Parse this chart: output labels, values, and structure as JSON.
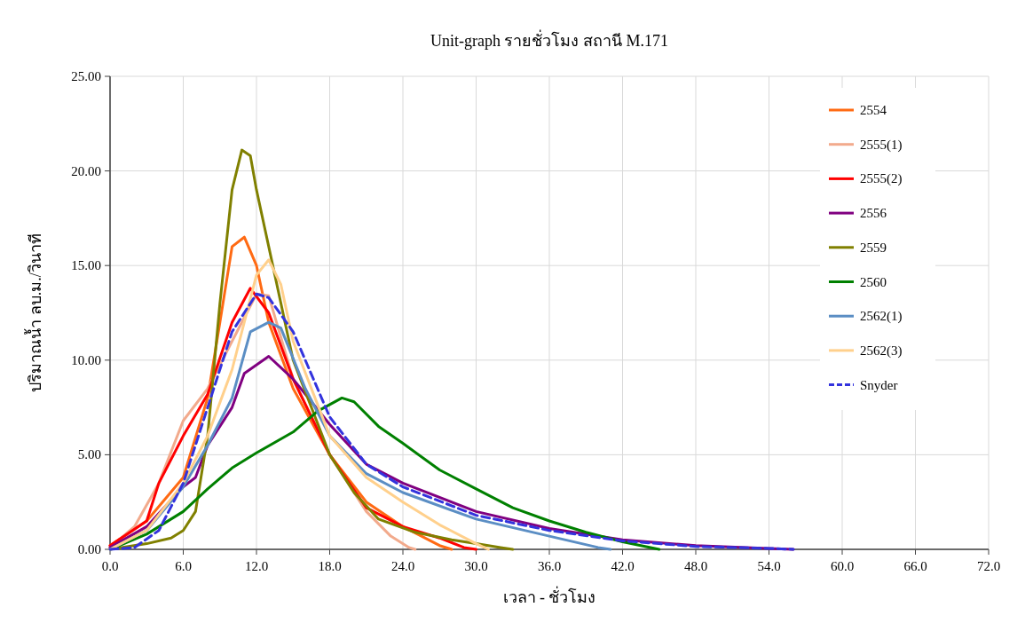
{
  "chart_data": {
    "type": "line",
    "title": "Unit-graph รายชั่วโมง สถานี M.171",
    "xlabel": "เวลา - ชั่วโมง",
    "ylabel": "ปริมาณน้ำ ลบ.ม./วินาที",
    "xlim": [
      0,
      72
    ],
    "xticks": [
      {
        "value": 0,
        "label": "0.0"
      },
      {
        "value": 6,
        "label": "6.0"
      },
      {
        "value": 12,
        "label": "12.0"
      },
      {
        "value": 18,
        "label": "18.0"
      },
      {
        "value": 24,
        "label": "24.0"
      },
      {
        "value": 30,
        "label": "30.0"
      },
      {
        "value": 36,
        "label": "36.0"
      },
      {
        "value": 42,
        "label": "42.0"
      },
      {
        "value": 48,
        "label": "48.0"
      },
      {
        "value": 54,
        "label": "54.0"
      },
      {
        "value": 60,
        "label": "60.0"
      },
      {
        "value": 66,
        "label": "66.0"
      },
      {
        "value": 72,
        "label": "72.0"
      }
    ],
    "ylim": [
      0,
      25
    ],
    "yticks": [
      {
        "value": 0,
        "label": "0.00"
      },
      {
        "value": 5,
        "label": "5.00"
      },
      {
        "value": 10,
        "label": "10.00"
      },
      {
        "value": 15,
        "label": "15.00"
      },
      {
        "value": 20,
        "label": "20.00"
      },
      {
        "value": 25,
        "label": "25.00"
      }
    ],
    "grid": true,
    "legend": "right",
    "marker": "none",
    "series": [
      {
        "name": "2554",
        "color": "#ff6a13",
        "x": [
          0,
          3,
          6,
          8,
          9,
          10,
          11,
          12,
          13,
          15,
          18,
          21,
          24,
          27,
          28
        ],
        "values": [
          0.2,
          1.5,
          3.8,
          8,
          12,
          16,
          16.5,
          15,
          12,
          8.5,
          5,
          2.5,
          1.2,
          0.2,
          0
        ]
      },
      {
        "name": "2555(1)",
        "color": "#f2aa8c",
        "x": [
          0,
          2,
          4,
          6,
          8,
          10,
          12,
          13,
          15,
          18,
          21,
          23,
          24.5,
          25
        ],
        "values": [
          0.1,
          1.2,
          3.5,
          6.8,
          8.5,
          11,
          13.5,
          13.4,
          9,
          5,
          2,
          0.7,
          0.1,
          0
        ]
      },
      {
        "name": "2555(2)",
        "color": "#ff0000",
        "x": [
          0,
          3,
          4,
          6,
          8,
          10,
          11.5,
          13,
          15,
          18,
          21,
          24,
          27,
          29,
          30
        ],
        "values": [
          0.2,
          1.5,
          3.5,
          6,
          8.2,
          12,
          13.8,
          12.5,
          9,
          5,
          2.2,
          1.2,
          0.6,
          0.1,
          0
        ]
      },
      {
        "name": "2556",
        "color": "#800080",
        "x": [
          0,
          3,
          6,
          7,
          8,
          10,
          11,
          13,
          15,
          18,
          21,
          24,
          30,
          36,
          42,
          48,
          54,
          56
        ],
        "values": [
          0.1,
          1.2,
          3.3,
          3.8,
          5.5,
          7.5,
          9.3,
          10.2,
          9,
          6.6,
          4.5,
          3.5,
          2,
          1.1,
          0.5,
          0.2,
          0.05,
          0
        ]
      },
      {
        "name": "2559",
        "color": "#808000",
        "x": [
          0,
          3,
          5,
          6,
          7,
          8,
          9,
          10,
          10.8,
          11.5,
          12,
          13,
          15,
          18,
          20,
          22,
          25,
          28,
          30,
          32,
          33
        ],
        "values": [
          0,
          0.3,
          0.6,
          1,
          2,
          6,
          13,
          19,
          21.1,
          20.8,
          19,
          16,
          10,
          5,
          3,
          1.6,
          0.9,
          0.5,
          0.3,
          0.1,
          0
        ]
      },
      {
        "name": "2560",
        "color": "#008000",
        "x": [
          0,
          3,
          6,
          8,
          10,
          12,
          15,
          17,
          19,
          20,
          22,
          24,
          27,
          30,
          33,
          36,
          39,
          42,
          45
        ],
        "values": [
          0,
          0.8,
          2,
          3.2,
          4.3,
          5.1,
          6.2,
          7.3,
          8,
          7.8,
          6.5,
          5.6,
          4.2,
          3.2,
          2.2,
          1.5,
          0.9,
          0.4,
          0
        ]
      },
      {
        "name": "2562(1)",
        "color": "#5b8ec4",
        "x": [
          0,
          3,
          6,
          8,
          10,
          11.5,
          13,
          14,
          16,
          18,
          21,
          24,
          30,
          36,
          40,
          41
        ],
        "values": [
          0,
          1,
          3.3,
          5.5,
          8,
          11.5,
          12,
          11.7,
          8.5,
          6,
          4,
          3,
          1.6,
          0.7,
          0.1,
          0
        ]
      },
      {
        "name": "2562(3)",
        "color": "#ffd08c",
        "x": [
          0,
          3,
          6,
          8,
          10,
          12,
          13,
          14,
          15,
          18,
          21,
          24,
          27,
          30,
          31
        ],
        "values": [
          0,
          1,
          3.5,
          6,
          9.5,
          14.5,
          15.3,
          14,
          11,
          6,
          3.8,
          2.5,
          1.3,
          0.3,
          0
        ]
      },
      {
        "name": "Snyder",
        "color": "#3333dd",
        "line_style": "dashed",
        "x": [
          0,
          2,
          4,
          6,
          8,
          10,
          12,
          13,
          15,
          18,
          21,
          24,
          30,
          36,
          42,
          48,
          54,
          56
        ],
        "values": [
          0,
          0.1,
          1,
          3.5,
          7.5,
          11.5,
          13.5,
          13.3,
          11.5,
          7,
          4.5,
          3.3,
          1.8,
          1,
          0.45,
          0.15,
          0.05,
          0
        ]
      }
    ]
  }
}
